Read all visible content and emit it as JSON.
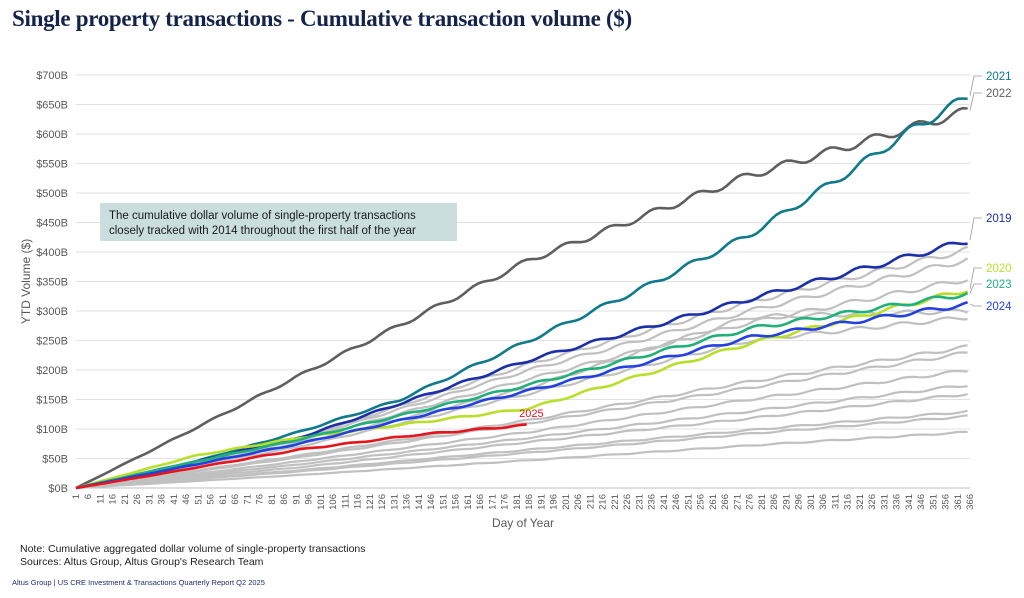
{
  "title": "Single property transactions - Cumulative transaction volume ($)",
  "chart_data": {
    "type": "line",
    "xlabel": "Day of Year",
    "ylabel": "YTD Volume ($)",
    "xlim": [
      1,
      366
    ],
    "ylim": [
      0,
      700
    ],
    "y_unit": "$B",
    "yticks": [
      "$0B",
      "$50B",
      "$100B",
      "$150B",
      "$200B",
      "$250B",
      "$300B",
      "$350B",
      "$400B",
      "$450B",
      "$500B",
      "$550B",
      "$600B",
      "$650B",
      "$700B"
    ],
    "xticks": [
      1,
      6,
      11,
      16,
      21,
      26,
      31,
      36,
      41,
      46,
      51,
      56,
      61,
      66,
      71,
      76,
      81,
      86,
      91,
      96,
      101,
      106,
      111,
      116,
      121,
      126,
      131,
      136,
      141,
      146,
      151,
      156,
      161,
      166,
      171,
      176,
      181,
      186,
      191,
      196,
      201,
      206,
      211,
      216,
      221,
      226,
      231,
      236,
      241,
      246,
      251,
      256,
      261,
      266,
      271,
      276,
      281,
      286,
      291,
      296,
      301,
      306,
      311,
      316,
      321,
      326,
      331,
      336,
      341,
      346,
      351,
      356,
      361,
      366
    ],
    "grid": true,
    "annotation": "The cumulative dollar volume of single-property transactions closely tracked with 2014 throughout the first half of the year",
    "series": [
      {
        "values": [
          [
            1,
            0
          ],
          [
            92,
            55
          ],
          [
            186,
            115
          ],
          [
            276,
            180
          ],
          [
            366,
            240
          ]
        ],
        "color": "#c0c0c0"
      },
      {
        "values": [
          [
            1,
            0
          ],
          [
            92,
            52
          ],
          [
            186,
            110
          ],
          [
            276,
            170
          ],
          [
            366,
            230
          ]
        ],
        "color": "#c0c0c0"
      },
      {
        "values": [
          [
            1,
            0
          ],
          [
            92,
            45
          ],
          [
            186,
            95
          ],
          [
            276,
            150
          ],
          [
            366,
            200
          ]
        ],
        "color": "#c0c0c0"
      },
      {
        "values": [
          [
            1,
            0
          ],
          [
            92,
            40
          ],
          [
            186,
            85
          ],
          [
            276,
            130
          ],
          [
            366,
            175
          ]
        ],
        "color": "#c0c0c0"
      },
      {
        "values": [
          [
            1,
            0
          ],
          [
            92,
            35
          ],
          [
            186,
            78
          ],
          [
            276,
            118
          ],
          [
            366,
            160
          ]
        ],
        "color": "#c0c0c0"
      },
      {
        "values": [
          [
            1,
            0
          ],
          [
            92,
            30
          ],
          [
            186,
            65
          ],
          [
            276,
            98
          ],
          [
            366,
            130
          ]
        ],
        "color": "#c0c0c0"
      },
      {
        "values": [
          [
            1,
            0
          ],
          [
            92,
            28
          ],
          [
            186,
            60
          ],
          [
            276,
            92
          ],
          [
            366,
            122
          ]
        ],
        "color": "#c0c0c0"
      },
      {
        "values": [
          [
            1,
            0
          ],
          [
            92,
            22
          ],
          [
            186,
            47
          ],
          [
            276,
            72
          ],
          [
            366,
            95
          ]
        ],
        "color": "#c0c0c0"
      },
      {
        "values": [
          [
            1,
            0
          ],
          [
            92,
            75
          ],
          [
            186,
            170
          ],
          [
            276,
            290
          ],
          [
            366,
            300
          ]
        ],
        "color": "#c0c0c0"
      },
      {
        "values": [
          [
            1,
            0
          ],
          [
            92,
            70
          ],
          [
            186,
            160
          ],
          [
            276,
            250
          ],
          [
            366,
            290
          ]
        ],
        "color": "#c0c0c0"
      },
      {
        "values": [
          [
            1,
            0
          ],
          [
            92,
            80
          ],
          [
            186,
            185
          ],
          [
            276,
            280
          ],
          [
            366,
            355
          ]
        ],
        "color": "#c0c0c0"
      },
      {
        "values": [
          [
            1,
            0
          ],
          [
            92,
            82
          ],
          [
            186,
            200
          ],
          [
            276,
            300
          ],
          [
            366,
            388
          ]
        ],
        "color": "#c0c0c0"
      },
      {
        "values": [
          [
            1,
            0
          ],
          [
            92,
            84
          ],
          [
            186,
            210
          ],
          [
            276,
            315
          ],
          [
            366,
            405
          ]
        ],
        "color": "#c0c0c0"
      },
      {
        "name": "2022",
        "values": [
          [
            1,
            0
          ],
          [
            30,
            60
          ],
          [
            92,
            190
          ],
          [
            186,
            386
          ],
          [
            276,
            530
          ],
          [
            366,
            640
          ]
        ],
        "color": "#5f5f5f"
      },
      {
        "name": "2021",
        "values": [
          [
            1,
            0
          ],
          [
            50,
            45
          ],
          [
            92,
            95
          ],
          [
            133,
            149
          ],
          [
            186,
            250
          ],
          [
            235,
            344
          ],
          [
            276,
            429
          ],
          [
            318,
            539
          ],
          [
            342,
            607
          ],
          [
            366,
            665
          ]
        ],
        "color": "#0f7a8c"
      },
      {
        "name": "2019",
        "values": [
          [
            1,
            0
          ],
          [
            50,
            45
          ],
          [
            92,
            85
          ],
          [
            186,
            217
          ],
          [
            276,
            320
          ],
          [
            366,
            420
          ]
        ],
        "color": "#1a2fa8"
      },
      {
        "name": "2020",
        "values": [
          [
            1,
            0
          ],
          [
            50,
            55
          ],
          [
            92,
            85
          ],
          [
            186,
            135
          ],
          [
            276,
            245
          ],
          [
            366,
            337
          ]
        ],
        "color": "#b8e02a"
      },
      {
        "name": "2023",
        "values": [
          [
            1,
            0
          ],
          [
            50,
            45
          ],
          [
            92,
            82
          ],
          [
            186,
            175
          ],
          [
            276,
            270
          ],
          [
            366,
            330
          ]
        ],
        "color": "#21b07a"
      },
      {
        "name": "2024",
        "values": [
          [
            1,
            0
          ],
          [
            50,
            40
          ],
          [
            92,
            75
          ],
          [
            186,
            165
          ],
          [
            276,
            255
          ],
          [
            366,
            312
          ]
        ],
        "color": "#2340e0"
      },
      {
        "name": "2025",
        "values": [
          [
            1,
            0
          ],
          [
            30,
            20
          ],
          [
            92,
            65
          ],
          [
            140,
            90
          ],
          [
            186,
            107
          ]
        ],
        "color": "#e8141c"
      }
    ]
  },
  "note": "Note: Cumulative aggregated dollar volume of single-property transactions",
  "sources": "Sources: Altus Group, Altus Group's Research Team",
  "footer": "Altus Group  |  US CRE Investment & Transactions Quarterly Report Q2 2025"
}
